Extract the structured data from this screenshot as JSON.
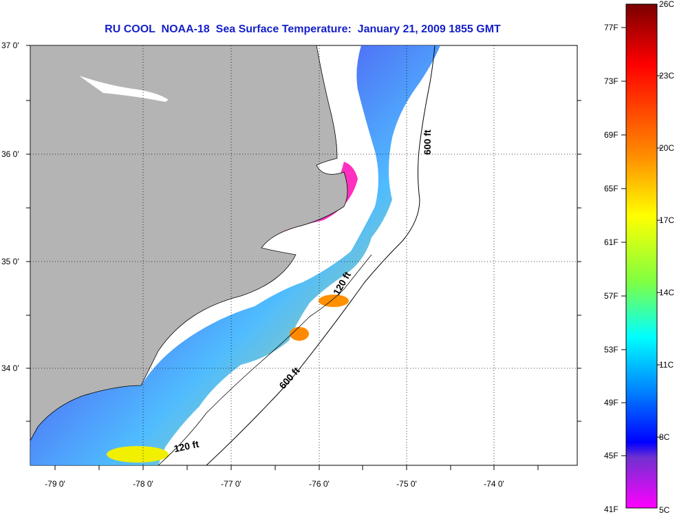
{
  "title": "RU COOL  NOAA-18  Sea Surface Temperature:  January 21, 2009 1855 GMT",
  "map": {
    "latitude_labels": [
      "37 0'",
      "36 0'",
      "35 0'",
      "34 0'"
    ],
    "longitude_labels": [
      "-79 0'",
      "-78 0'",
      "-77 0'",
      "-76 0'",
      "-75 0'",
      "-74 0'"
    ],
    "contour_labels": [
      "600 ft",
      "120 ft",
      "600 ft",
      "120 ft"
    ],
    "land_color": "#b4b4b4",
    "water_color": "#ffffff"
  },
  "colorbar": {
    "fahrenheit_labels": [
      "77F",
      "73F",
      "69F",
      "65F",
      "61F",
      "57F",
      "53F",
      "49F",
      "45F",
      "41F"
    ],
    "celsius_labels": [
      "26C",
      "23C",
      "20C",
      "17C",
      "14C",
      "11C",
      "8C",
      "5C"
    ],
    "scale_colors": [
      "#7a0000",
      "#ff0000",
      "#ff8c00",
      "#ffff00",
      "#80ff40",
      "#00ffff",
      "#0080ff",
      "#0000ff",
      "#8000c0",
      "#ff00ff"
    ]
  }
}
